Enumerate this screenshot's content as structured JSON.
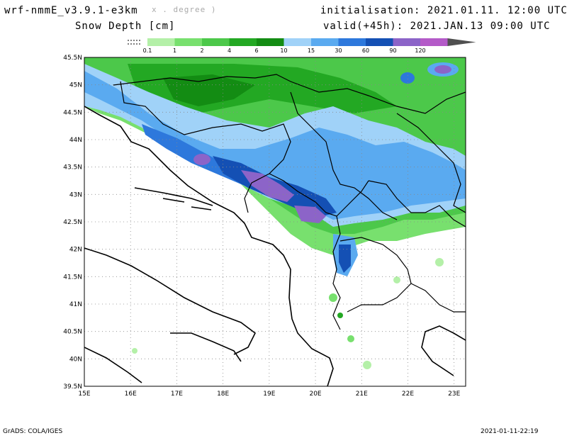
{
  "header": {
    "model": "wrf-nmmE_v3.9.1-e3km",
    "projection": "x . degree )",
    "field": "Snow Depth [cm]",
    "init": "initialisation: 2021.01.11.  12:00 UTC",
    "valid": "valid(+45h): 2021.JAN.13 09:00 UTC"
  },
  "legend": {
    "labels": [
      "0.1",
      "1",
      "2",
      "4",
      "6",
      "10",
      "15",
      "30",
      "60",
      "90",
      "120"
    ],
    "colors": [
      "#b4f0a8",
      "#78e06e",
      "#4cc84a",
      "#23a823",
      "#138c13",
      "#a0d2f8",
      "#5aaaf0",
      "#2d78dc",
      "#1450b4",
      "#8c64c8",
      "#b45ac8",
      "#505050"
    ]
  },
  "axes": {
    "lat_labels": [
      "45.5N",
      "45N",
      "44.5N",
      "44N",
      "43.5N",
      "43N",
      "42.5N",
      "42N",
      "41.5N",
      "41N",
      "40.5N",
      "40N",
      "39.5N"
    ],
    "lon_labels": [
      "15E",
      "16E",
      "17E",
      "18E",
      "19E",
      "20E",
      "21E",
      "22E",
      "23E"
    ]
  },
  "footer": {
    "left": "GrADS: COLA/IGES",
    "right": "2021-01-11-22:19"
  }
}
